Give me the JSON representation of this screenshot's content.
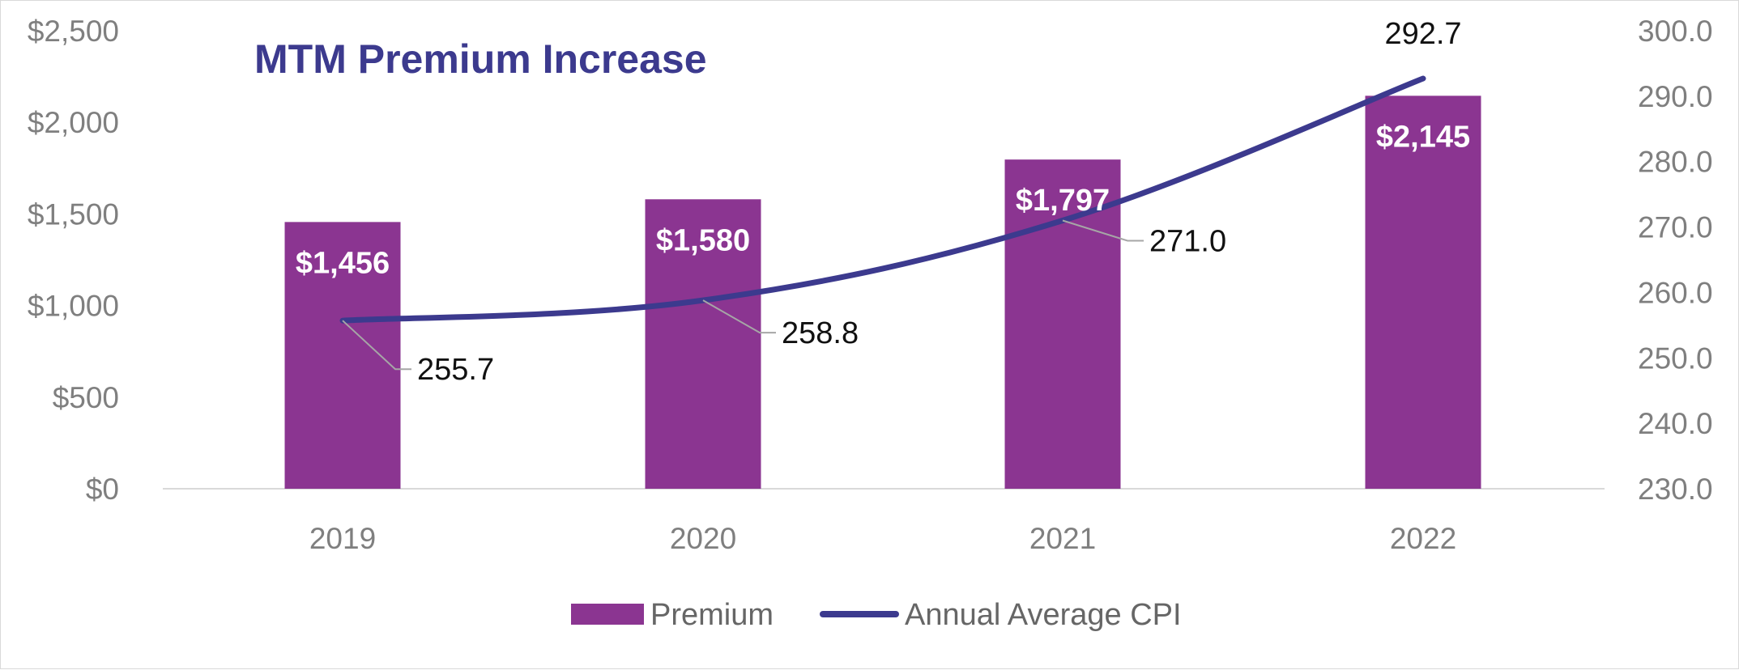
{
  "chart_data": {
    "type": "bar",
    "title": "MTM Premium Increase",
    "categories": [
      "2019",
      "2020",
      "2021",
      "2022"
    ],
    "series": [
      {
        "name": "Premium",
        "type": "bar",
        "axis": "left",
        "values": [
          1456,
          1580,
          1797,
          2145
        ],
        "labels": [
          "$1,456",
          "$1,580",
          "$1,797",
          "$2,145"
        ],
        "color": "#8b3591"
      },
      {
        "name": "Annual Average CPI",
        "type": "line",
        "axis": "right",
        "values": [
          255.7,
          258.8,
          271.0,
          292.7
        ],
        "labels": [
          "255.7",
          "258.8",
          "271.0",
          "292.7"
        ],
        "color": "#3c3a8e"
      }
    ],
    "y_left": {
      "range": [
        0,
        2500
      ],
      "ticks": [
        0,
        500,
        1000,
        1500,
        2000,
        2500
      ],
      "tick_labels": [
        "$0",
        "$500",
        "$1,000",
        "$1,500",
        "$2,000",
        "$2,500"
      ]
    },
    "y_right": {
      "range": [
        230,
        300
      ],
      "ticks": [
        230,
        240,
        250,
        260,
        270,
        280,
        290,
        300
      ],
      "tick_labels": [
        "230.0",
        "240.0",
        "250.0",
        "260.0",
        "270.0",
        "280.0",
        "290.0",
        "300.0"
      ]
    },
    "grid": false,
    "legend_position": "bottom",
    "axis_line_color": "#d9d9d9"
  }
}
